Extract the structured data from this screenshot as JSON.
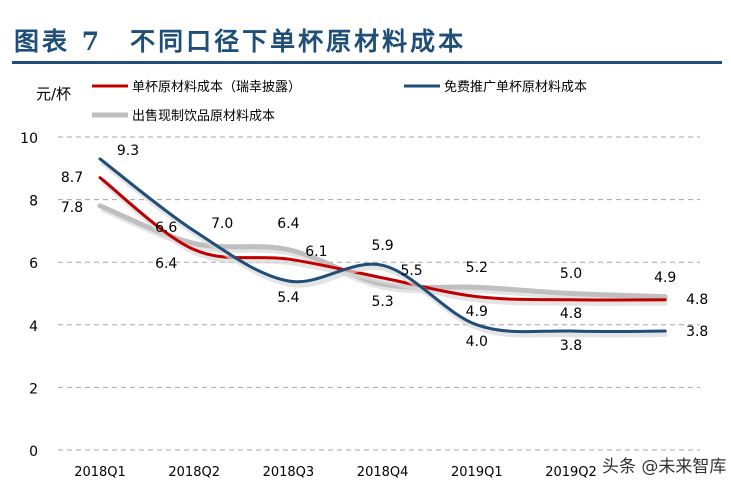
{
  "header": {
    "title": "图表 7　不同口径下单杯原材料成本"
  },
  "watermark": "头条 @未来智库",
  "chart_data": {
    "type": "line",
    "ylabel": "元/杯",
    "ylim": [
      0,
      10
    ],
    "yticks": [
      0,
      2,
      4,
      6,
      8,
      10
    ],
    "grid": "horizontal dashed",
    "legend": "top",
    "categories": [
      "2018Q1",
      "2018Q2",
      "2018Q3",
      "2018Q4",
      "2019Q1",
      "2019Q2",
      ""
    ],
    "series": [
      {
        "name": "单杯原材料成本（瑞幸披露）",
        "color": "#c00000",
        "values": [
          8.7,
          6.4,
          6.1,
          5.5,
          4.9,
          4.8,
          4.8
        ]
      },
      {
        "name": "免费推广单杯原材料成本",
        "color": "#1f4e79",
        "values": [
          9.3,
          7.0,
          5.4,
          5.9,
          4.0,
          3.8,
          3.8
        ]
      },
      {
        "name": "出售现制饮品原材料成本",
        "color": "#bfbfbf",
        "values": [
          7.8,
          6.6,
          6.4,
          5.3,
          5.2,
          5.0,
          4.9
        ]
      }
    ]
  }
}
